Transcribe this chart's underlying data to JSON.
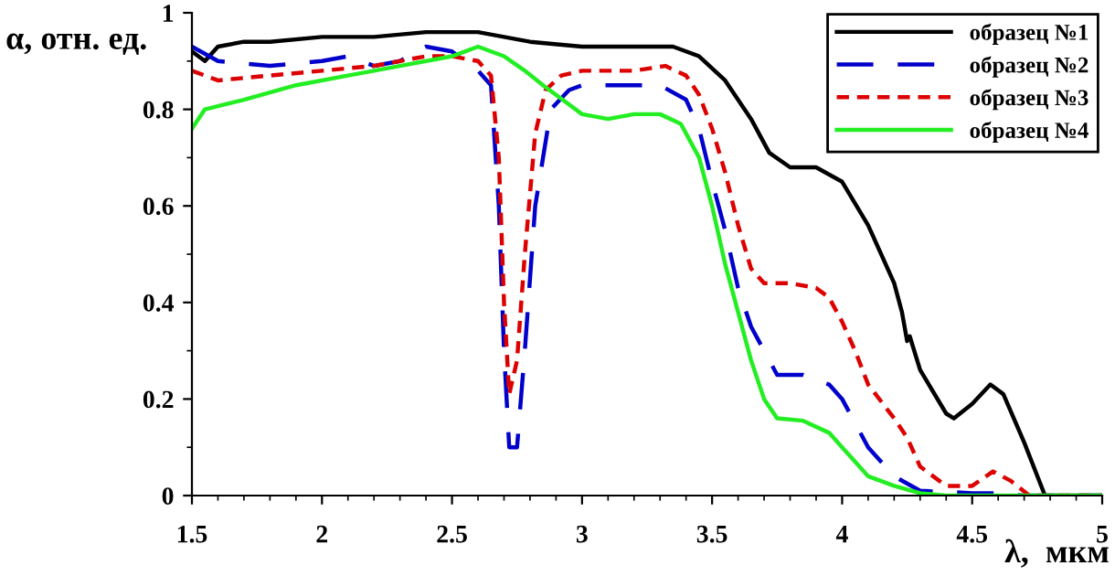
{
  "chart_data": {
    "type": "line",
    "xlabel": "λ,  мкм",
    "ylabel": "α, отн. ед.",
    "xlim": [
      1.5,
      5
    ],
    "ylim": [
      0,
      1
    ],
    "xticks": [
      1.5,
      2,
      2.5,
      3,
      3.5,
      4,
      4.5,
      5
    ],
    "yticks": [
      0,
      0.2,
      0.4,
      0.6,
      0.8,
      1
    ],
    "grid": false,
    "legend": "top right",
    "marker": "none",
    "series": [
      {
        "name": "образец №1",
        "color": "#000000",
        "line_style": "solid",
        "x": [
          1.5,
          1.55,
          1.6,
          1.7,
          1.8,
          2.0,
          2.2,
          2.4,
          2.5,
          2.6,
          2.7,
          2.8,
          3.0,
          3.2,
          3.35,
          3.45,
          3.55,
          3.65,
          3.72,
          3.8,
          3.9,
          4.0,
          4.1,
          4.2,
          4.23,
          4.25,
          4.26,
          4.3,
          4.4,
          4.43,
          4.5,
          4.57,
          4.62,
          4.7,
          4.78,
          5.0
        ],
        "values": [
          0.92,
          0.9,
          0.93,
          0.94,
          0.94,
          0.95,
          0.95,
          0.96,
          0.96,
          0.96,
          0.95,
          0.94,
          0.93,
          0.93,
          0.93,
          0.91,
          0.86,
          0.78,
          0.71,
          0.68,
          0.68,
          0.65,
          0.56,
          0.44,
          0.38,
          0.32,
          0.33,
          0.26,
          0.17,
          0.16,
          0.19,
          0.23,
          0.21,
          0.11,
          0.0,
          0.0
        ]
      },
      {
        "name": "образец №2",
        "color": "#0000cc",
        "line_style": "dashed",
        "x": [
          1.5,
          1.6,
          1.8,
          2.0,
          2.1,
          2.2,
          2.3,
          2.4,
          2.5,
          2.6,
          2.65,
          2.68,
          2.7,
          2.72,
          2.75,
          2.78,
          2.82,
          2.88,
          2.95,
          3.0,
          3.2,
          3.3,
          3.4,
          3.45,
          3.5,
          3.55,
          3.6,
          3.65,
          3.7,
          3.75,
          3.85,
          3.95,
          4.0,
          4.1,
          4.2,
          4.3,
          4.5,
          4.6,
          4.7,
          5.0
        ],
        "values": [
          0.93,
          0.9,
          0.89,
          0.9,
          0.91,
          0.89,
          0.9,
          0.93,
          0.92,
          0.88,
          0.85,
          0.6,
          0.3,
          0.1,
          0.1,
          0.3,
          0.6,
          0.8,
          0.84,
          0.85,
          0.85,
          0.85,
          0.82,
          0.76,
          0.65,
          0.55,
          0.43,
          0.35,
          0.3,
          0.25,
          0.25,
          0.23,
          0.2,
          0.1,
          0.04,
          0.01,
          0.005,
          0.005,
          0.0,
          0.0
        ]
      },
      {
        "name": "образец №3",
        "color": "#dd0000",
        "line_style": "dotted",
        "x": [
          1.5,
          1.6,
          1.8,
          2.0,
          2.2,
          2.4,
          2.5,
          2.6,
          2.65,
          2.68,
          2.7,
          2.72,
          2.75,
          2.78,
          2.82,
          2.86,
          2.92,
          3.0,
          3.2,
          3.32,
          3.4,
          3.45,
          3.5,
          3.55,
          3.6,
          3.65,
          3.7,
          3.8,
          3.9,
          3.95,
          4.0,
          4.05,
          4.1,
          4.2,
          4.25,
          4.3,
          4.4,
          4.5,
          4.58,
          4.65,
          4.72,
          5.0
        ],
        "values": [
          0.88,
          0.86,
          0.87,
          0.88,
          0.89,
          0.91,
          0.91,
          0.9,
          0.87,
          0.7,
          0.4,
          0.21,
          0.28,
          0.5,
          0.75,
          0.84,
          0.87,
          0.88,
          0.88,
          0.89,
          0.87,
          0.83,
          0.76,
          0.67,
          0.56,
          0.47,
          0.44,
          0.44,
          0.43,
          0.41,
          0.36,
          0.3,
          0.23,
          0.16,
          0.12,
          0.06,
          0.02,
          0.02,
          0.05,
          0.03,
          0.0,
          0.0
        ]
      },
      {
        "name": "образец №4",
        "color": "#22ee22",
        "line_style": "solid",
        "x": [
          1.5,
          1.55,
          1.7,
          1.9,
          2.1,
          2.3,
          2.5,
          2.6,
          2.7,
          2.78,
          2.85,
          2.95,
          3.0,
          3.1,
          3.2,
          3.3,
          3.38,
          3.45,
          3.5,
          3.55,
          3.6,
          3.65,
          3.7,
          3.75,
          3.85,
          3.95,
          4.0,
          4.05,
          4.1,
          4.2,
          4.3,
          4.4,
          5.0
        ],
        "values": [
          0.76,
          0.8,
          0.82,
          0.85,
          0.87,
          0.89,
          0.91,
          0.93,
          0.91,
          0.88,
          0.85,
          0.81,
          0.79,
          0.78,
          0.79,
          0.79,
          0.77,
          0.7,
          0.6,
          0.48,
          0.38,
          0.28,
          0.2,
          0.16,
          0.155,
          0.13,
          0.1,
          0.07,
          0.04,
          0.02,
          0.005,
          0.0,
          0.0
        ]
      }
    ]
  }
}
